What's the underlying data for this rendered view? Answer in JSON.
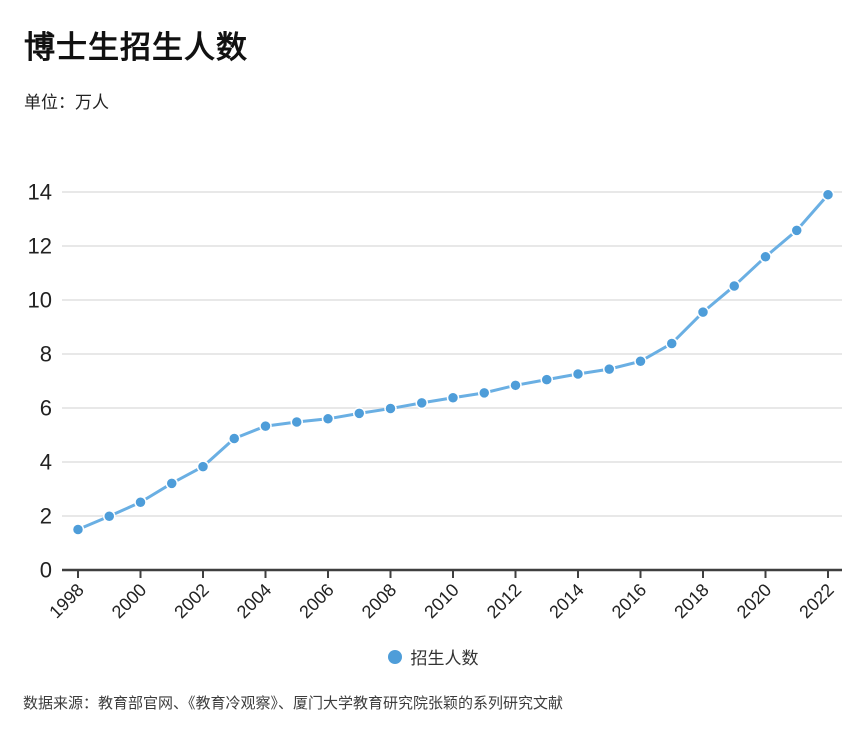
{
  "header": {
    "title": "博士生招生人数",
    "unit_label": "单位：万人"
  },
  "legend": {
    "label": "招生人数",
    "marker_icon": "circle-dot-icon"
  },
  "footer": {
    "source": "数据来源：教育部官网、《教育冷观察》、厦门大学教育研究院张颖的系列研究文献"
  },
  "colors": {
    "line": "#6aafe3",
    "marker": "#4e9dd9",
    "grid": "#e0e0e0",
    "axis": "#3f3f3f",
    "tick_text": "#222222"
  },
  "chart_data": {
    "type": "line",
    "title": "博士生招生人数",
    "ylabel": "万人",
    "x": [
      1998,
      1999,
      2000,
      2001,
      2002,
      2003,
      2004,
      2005,
      2006,
      2007,
      2008,
      2009,
      2010,
      2011,
      2012,
      2013,
      2014,
      2015,
      2016,
      2017,
      2018,
      2019,
      2020,
      2021,
      2022
    ],
    "series": [
      {
        "name": "招生人数",
        "values": [
          1.5,
          1.99,
          2.51,
          3.21,
          3.83,
          4.87,
          5.33,
          5.48,
          5.6,
          5.8,
          5.98,
          6.19,
          6.38,
          6.56,
          6.84,
          7.05,
          7.26,
          7.44,
          7.73,
          8.39,
          9.55,
          10.52,
          11.6,
          12.58,
          13.9
        ]
      }
    ],
    "xticks": [
      1998,
      2000,
      2002,
      2004,
      2006,
      2008,
      2010,
      2012,
      2014,
      2016,
      2018,
      2020,
      2022
    ],
    "ylim": [
      0,
      14
    ],
    "yticks": [
      0,
      2,
      4,
      6,
      8,
      10,
      12,
      14
    ],
    "grid": "horizontal",
    "legend_position": "bottom",
    "marker": "circle"
  }
}
